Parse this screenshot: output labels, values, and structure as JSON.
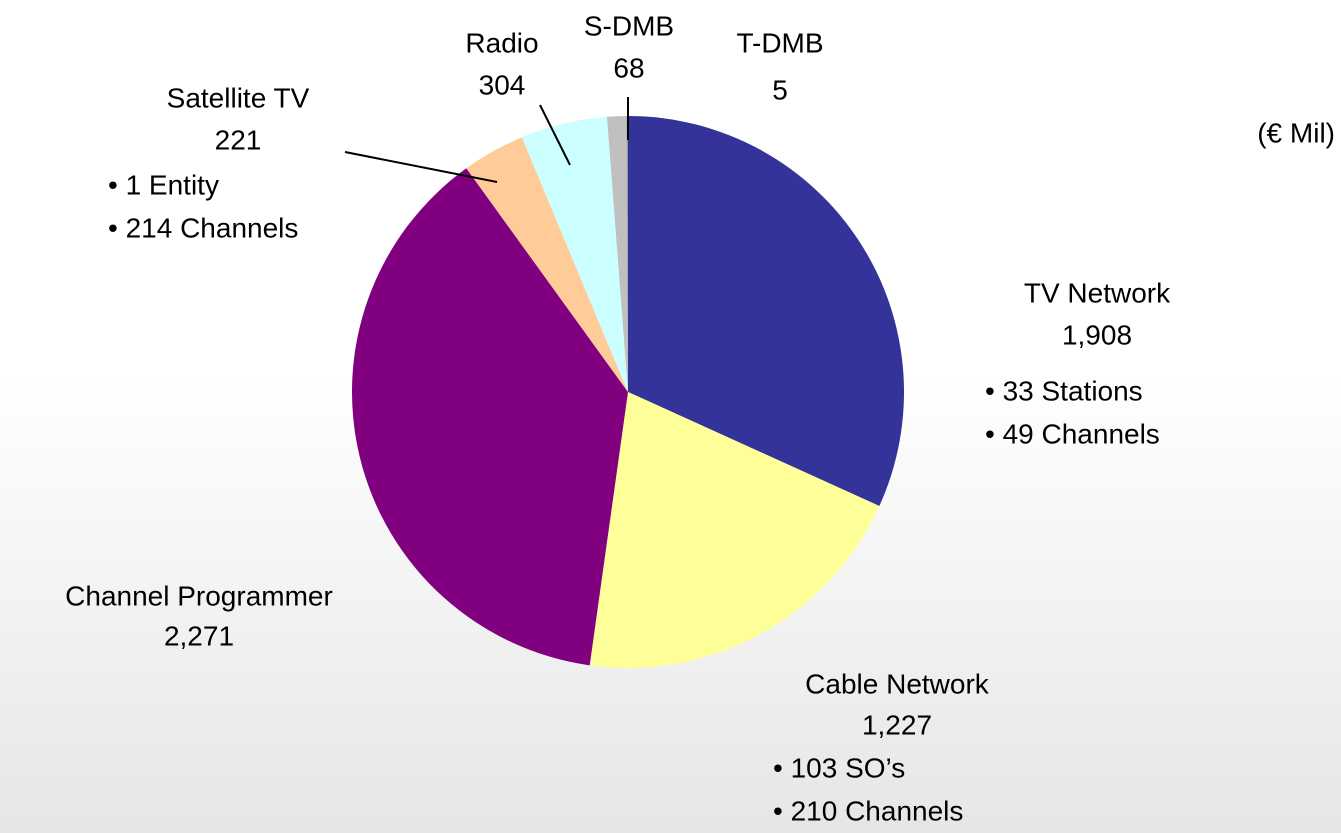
{
  "chart_data": {
    "type": "pie",
    "subtitle": "(€ Mil)",
    "categories": [
      "TV Network",
      "Cable Network",
      "Channel Programmer",
      "Satellite TV",
      "Radio",
      "S-DMB",
      "T-DMB"
    ],
    "values": [
      1908,
      1227,
      2271,
      221,
      304,
      68,
      5
    ],
    "value_labels": [
      "1,908",
      "1,227",
      "2,271",
      "221",
      "304",
      "68",
      "5"
    ],
    "colors": [
      "#333399",
      "#ffff99",
      "#800080",
      "#ffcc99",
      "#ccffff",
      "#c0c0c0",
      "#969696"
    ],
    "details": [
      [
        "• 33 Stations",
        "• 49 Channels"
      ],
      [
        "• 103 SO’s",
        "• 210 Channels"
      ],
      [],
      [
        "• 1 Entity",
        "• 214 Channels"
      ],
      [],
      [],
      []
    ]
  }
}
